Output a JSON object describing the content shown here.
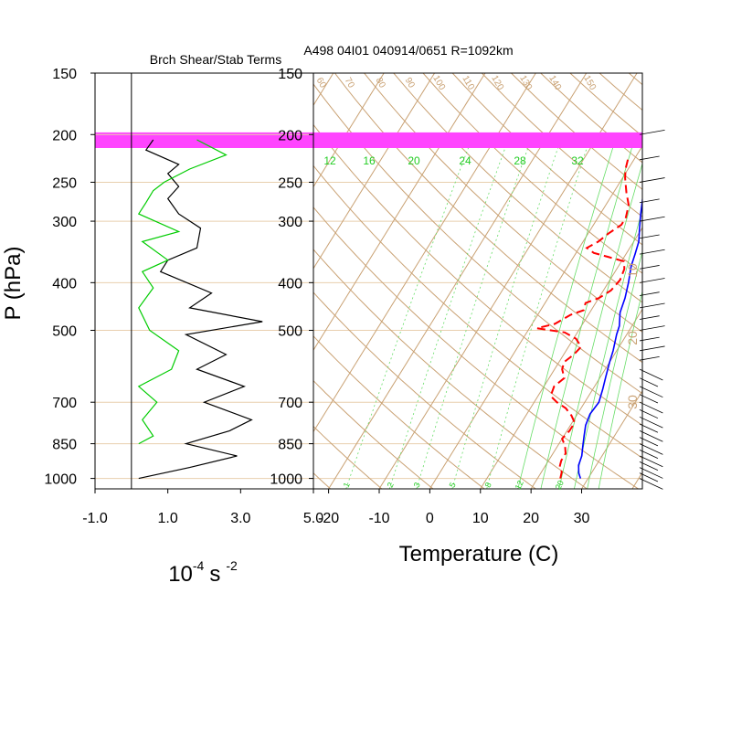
{
  "chart_data": [
    {
      "type": "line",
      "title": "Brch Shear/Stab Terms",
      "xlabel_base": "10",
      "xlabel_exp": "-4",
      "xlabel_unit": "s",
      "xlabel_unit_exp": "-2",
      "ylabel": "P (hPa)",
      "x_tick_labels": [
        "-1.0",
        "1.0",
        "3.0",
        "5.0"
      ],
      "x_ticks": [
        -1,
        1,
        3,
        5
      ],
      "xlim": [
        -1.0,
        5.0
      ],
      "y_tick_labels": [
        "150",
        "200",
        "250",
        "300",
        "400",
        "500",
        "700",
        "850",
        "1000"
      ],
      "y_ticks": [
        150,
        200,
        250,
        300,
        400,
        500,
        700,
        850,
        1000
      ],
      "ylim": [
        1050,
        150
      ],
      "y_scale": "log",
      "zero_line": 0,
      "series": [
        {
          "color": "#000000",
          "points": [
            [
              0.6,
              205
            ],
            [
              0.4,
              215
            ],
            [
              1.3,
              230
            ],
            [
              1.0,
              240
            ],
            [
              1.3,
              255
            ],
            [
              1.0,
              270
            ],
            [
              1.3,
              290
            ],
            [
              1.9,
              310
            ],
            [
              1.8,
              340
            ],
            [
              1.0,
              360
            ],
            [
              0.8,
              380
            ],
            [
              2.2,
              420
            ],
            [
              1.6,
              450
            ],
            [
              3.6,
              480
            ],
            [
              1.5,
              510
            ],
            [
              2.6,
              560
            ],
            [
              1.8,
              600
            ],
            [
              3.1,
              650
            ],
            [
              2.0,
              700
            ],
            [
              3.3,
              760
            ],
            [
              2.7,
              800
            ],
            [
              1.5,
              850
            ],
            [
              2.9,
              900
            ],
            [
              1.6,
              950
            ],
            [
              0.2,
              1000
            ]
          ]
        },
        {
          "color": "#00cc00",
          "points": [
            [
              1.8,
              205
            ],
            [
              2.6,
              220
            ],
            [
              1.6,
              235
            ],
            [
              0.9,
              250
            ],
            [
              0.6,
              260
            ],
            [
              0.4,
              275
            ],
            [
              0.2,
              290
            ],
            [
              1.3,
              315
            ],
            [
              0.3,
              330
            ],
            [
              1.0,
              360
            ],
            [
              0.3,
              380
            ],
            [
              0.6,
              410
            ],
            [
              0.2,
              450
            ],
            [
              0.5,
              500
            ],
            [
              1.3,
              550
            ],
            [
              1.1,
              600
            ],
            [
              0.2,
              650
            ],
            [
              0.7,
              700
            ],
            [
              0.3,
              760
            ],
            [
              0.6,
              820
            ],
            [
              0.2,
              850
            ]
          ]
        }
      ]
    },
    {
      "type": "line",
      "title": "A498 04I01 040914/0651 R=1092km",
      "xlabel": "Temperature (C)",
      "x_tick_labels": [
        "-20",
        "-10",
        "0",
        "10",
        "20",
        "30"
      ],
      "x_ticks": [
        -20,
        -10,
        0,
        10,
        20,
        30
      ],
      "xlim": [
        -23,
        42
      ],
      "y_tick_labels": [
        "150",
        "200",
        "250",
        "300",
        "400",
        "500",
        "700",
        "850",
        "1000"
      ],
      "y_ticks": [
        150,
        200,
        250,
        300,
        400,
        500,
        700,
        850,
        1000
      ],
      "ylim": [
        1050,
        150
      ],
      "y_scale": "log",
      "highlight_band_hPa": [
        198,
        213
      ],
      "highlight_color": "#ff44ff",
      "isotherm_labels": [
        "60",
        "70",
        "80",
        "90",
        "100",
        "110",
        "120",
        "130",
        "140",
        "150"
      ],
      "mixing_ratio_labels_top": [
        "12",
        "16",
        "20",
        "24",
        "28",
        "32"
      ],
      "mixing_ratio_labels_bottom": [
        "1",
        "2",
        "3",
        "5",
        "8",
        "12",
        "20"
      ],
      "side_labels": [
        "10",
        "20",
        "30"
      ],
      "series": [
        {
          "color": "#0000ff",
          "style": "solid",
          "points": [
            [
              -0.5,
              200
            ],
            [
              0.8,
              210
            ],
            [
              1.8,
              220
            ],
            [
              3.0,
              230
            ],
            [
              4.0,
              240
            ],
            [
              4.8,
              250
            ],
            [
              6.5,
              270
            ],
            [
              8.0,
              290
            ],
            [
              9.5,
              310
            ],
            [
              11.0,
              330
            ],
            [
              11.8,
              350
            ],
            [
              12.5,
              370
            ],
            [
              14.0,
              400
            ],
            [
              15.2,
              430
            ],
            [
              16.0,
              460
            ],
            [
              17.5,
              490
            ],
            [
              18.0,
              510
            ],
            [
              19.3,
              550
            ],
            [
              20.0,
              580
            ],
            [
              21.0,
              620
            ],
            [
              22.0,
              660
            ],
            [
              22.8,
              700
            ],
            [
              22.5,
              740
            ],
            [
              23.0,
              780
            ],
            [
              24.0,
              820
            ],
            [
              25.0,
              860
            ],
            [
              26.0,
              900
            ],
            [
              26.5,
              940
            ],
            [
              27.5,
              975
            ],
            [
              28.5,
              1000
            ]
          ]
        },
        {
          "color": "#ff0000",
          "style": "dashed",
          "points": [
            [
              -1.2,
              225
            ],
            [
              -0.5,
              235
            ],
            [
              0.5,
              245
            ],
            [
              2.5,
              262
            ],
            [
              4.5,
              278
            ],
            [
              5.5,
              295
            ],
            [
              5.5,
              305
            ],
            [
              4.0,
              318
            ],
            [
              3.0,
              330
            ],
            [
              1.5,
              340
            ],
            [
              3.5,
              348
            ],
            [
              7.0,
              355
            ],
            [
              10.5,
              362
            ],
            [
              11.5,
              375
            ],
            [
              12.0,
              395
            ],
            [
              11.5,
              415
            ],
            [
              10.0,
              430
            ],
            [
              8.0,
              440
            ],
            [
              8.5,
              455
            ],
            [
              6.5,
              465
            ],
            [
              5.5,
              475
            ],
            [
              4.5,
              485
            ],
            [
              1.5,
              495
            ],
            [
              4.5,
              500
            ],
            [
              7.5,
              505
            ],
            [
              10.5,
              520
            ],
            [
              12.5,
              540
            ],
            [
              12.0,
              560
            ],
            [
              11.0,
              580
            ],
            [
              11.5,
              600
            ],
            [
              13.0,
              625
            ],
            [
              12.0,
              650
            ],
            [
              12.5,
              680
            ],
            [
              14.5,
              700
            ],
            [
              17.0,
              720
            ],
            [
              19.0,
              745
            ],
            [
              20.5,
              770
            ],
            [
              20.5,
              800
            ],
            [
              20.0,
              830
            ],
            [
              21.5,
              860
            ],
            [
              22.5,
              890
            ],
            [
              22.5,
              920
            ],
            [
              23.0,
              950
            ],
            [
              24.0,
              970
            ],
            [
              24.5,
              1000
            ]
          ]
        }
      ]
    }
  ]
}
